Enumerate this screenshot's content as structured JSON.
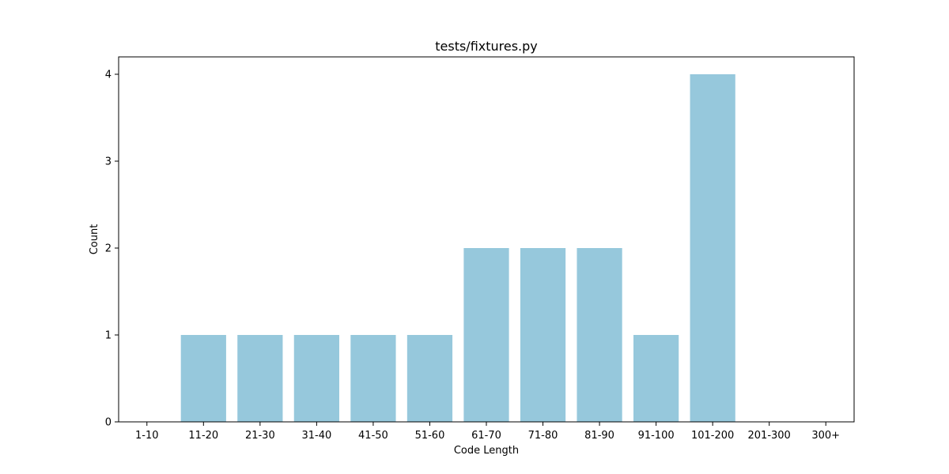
{
  "chart_data": {
    "type": "bar",
    "title": "tests/fixtures.py",
    "xlabel": "Code Length",
    "ylabel": "Count",
    "categories": [
      "1-10",
      "11-20",
      "21-30",
      "31-40",
      "41-50",
      "51-60",
      "61-70",
      "71-80",
      "81-90",
      "91-100",
      "101-200",
      "201-300",
      "300+"
    ],
    "values": [
      0,
      1,
      1,
      1,
      1,
      1,
      2,
      2,
      2,
      1,
      4,
      0,
      0
    ],
    "ylim": [
      0,
      4.2
    ],
    "yticks": [
      "0",
      "1",
      "2",
      "3",
      "4"
    ],
    "grid": false,
    "bar_color": "#96c8dc"
  }
}
